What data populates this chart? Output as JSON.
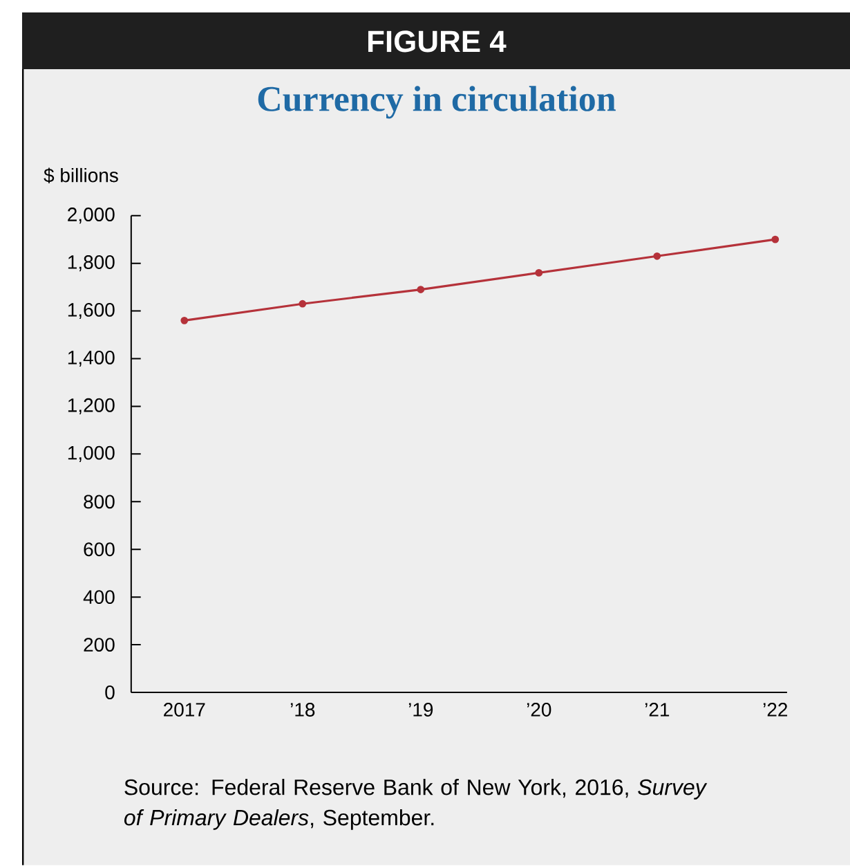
{
  "chart_data": {
    "type": "line",
    "title": "FIGURE 4",
    "subtitle": "Currency in circulation",
    "ylabel": "$ billions",
    "x": [
      2017,
      2018,
      2019,
      2020,
      2021,
      2022
    ],
    "series": [
      {
        "color": "#b5323a",
        "values": [
          1560,
          1630,
          1690,
          1760,
          1830,
          1900
        ]
      }
    ],
    "xlim": [
      2016.55,
      2022.1
    ],
    "ylim": [
      0,
      2000
    ],
    "xticks": [
      2017,
      {
        "value": 2018,
        "label": "’18"
      },
      {
        "value": 2019,
        "label": "’19"
      },
      {
        "value": 2020,
        "label": "’20"
      },
      {
        "value": 2021,
        "label": "’21"
      },
      {
        "value": 2022,
        "label": "’22"
      }
    ],
    "yticks": [
      0,
      200,
      400,
      600,
      800,
      {
        "value": 1000,
        "label": "1,000"
      },
      {
        "value": 1200,
        "label": "1,200"
      },
      {
        "value": 1400,
        "label": "1,400"
      },
      {
        "value": 1600,
        "label": "1,600"
      },
      {
        "value": 1800,
        "label": "1,800"
      },
      {
        "value": 2000,
        "label": "2,000"
      }
    ],
    "grid": false,
    "marker": "circle",
    "line_style": "solid",
    "annotations": [
      "Source: Federal Reserve Bank of New York, 2016, *Survey of Primary Dealers*, September."
    ]
  }
}
